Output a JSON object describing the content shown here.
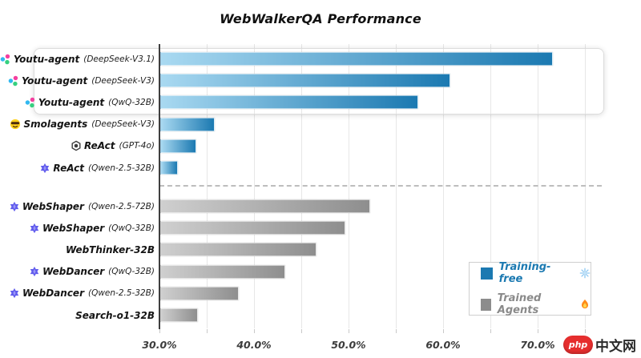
{
  "title": "WebWalkerQA Performance",
  "chart_data": {
    "type": "bar",
    "orientation": "horizontal",
    "title": "WebWalkerQA Performance",
    "xlabel": "",
    "ylabel": "",
    "x_axis": {
      "min": 30,
      "max": 77,
      "unit": "%",
      "tick_values": [
        30,
        40,
        50,
        60,
        70
      ],
      "tick_labels": [
        "30.0%",
        "40.0%",
        "50.0%",
        "60.0%",
        "70.0%"
      ],
      "minor_grid_step": 5,
      "grid": true
    },
    "bars": [
      {
        "label": "Youtu-agent",
        "model": "(DeepSeek-V3.1)",
        "value": 71.5,
        "group": "training-free",
        "icon": "youtu-agent-icon",
        "highlighted": true
      },
      {
        "label": "Youtu-agent",
        "model": "(DeepSeek-V3)",
        "value": 60.7,
        "group": "training-free",
        "icon": "youtu-agent-icon",
        "highlighted": true
      },
      {
        "label": "Youtu-agent",
        "model": "(QwQ-32B)",
        "value": 57.3,
        "group": "training-free",
        "icon": "youtu-agent-icon",
        "highlighted": true
      },
      {
        "label": "Smolagents",
        "model": "(DeepSeek-V3)",
        "value": 35.8,
        "group": "training-free",
        "icon": "smolagents-icon",
        "highlighted": false
      },
      {
        "label": "ReAct",
        "model": "(GPT-4o)",
        "value": 33.8,
        "group": "training-free",
        "icon": "openai-icon",
        "highlighted": false
      },
      {
        "label": "ReAct",
        "model": "(Qwen-2.5-32B)",
        "value": 31.9,
        "group": "training-free",
        "icon": "qwen-icon",
        "highlighted": false
      },
      {
        "label": "WebShaper",
        "model": "(Qwen-2.5-72B)",
        "value": 52.2,
        "group": "trained",
        "icon": "qwen-icon",
        "highlighted": false
      },
      {
        "label": "WebShaper",
        "model": "(QwQ-32B)",
        "value": 49.6,
        "group": "trained",
        "icon": "qwen-icon",
        "highlighted": false
      },
      {
        "label": "WebThinker-32B",
        "model": "",
        "value": 46.5,
        "group": "trained",
        "icon": null,
        "highlighted": false
      },
      {
        "label": "WebDancer",
        "model": "(QwQ-32B)",
        "value": 43.2,
        "group": "trained",
        "icon": "qwen-icon",
        "highlighted": false
      },
      {
        "label": "WebDancer",
        "model": "(Qwen-2.5-32B)",
        "value": 38.3,
        "group": "trained",
        "icon": "qwen-icon",
        "highlighted": false
      },
      {
        "label": "Search-o1-32B",
        "model": "",
        "value": 34.0,
        "group": "trained",
        "icon": null,
        "highlighted": false
      }
    ],
    "legend": {
      "position": "lower right",
      "items": [
        {
          "label": "Training-free",
          "icon": "snowflake-icon",
          "color": "#1b79b1"
        },
        {
          "label": "Trained Agents",
          "icon": "flame-icon",
          "color": "#8c8c8c"
        }
      ]
    },
    "colors": {
      "training_free_gradient": [
        "#a9d9f1",
        "#1b79b1"
      ],
      "trained_gradient": [
        "#cfcfcf",
        "#8e8e8e"
      ],
      "axis": "#3f3f3f",
      "grid": "#e7e7e7",
      "separator_dashed": "#bdbdbd"
    },
    "separator": "dashed line between training-free and trained groups"
  },
  "legend_labels": {
    "training_free": "Training-free",
    "trained": "Trained Agents"
  },
  "watermark": {
    "badge": "php",
    "text": "中文网",
    "badge_color": "#e62e2e"
  }
}
